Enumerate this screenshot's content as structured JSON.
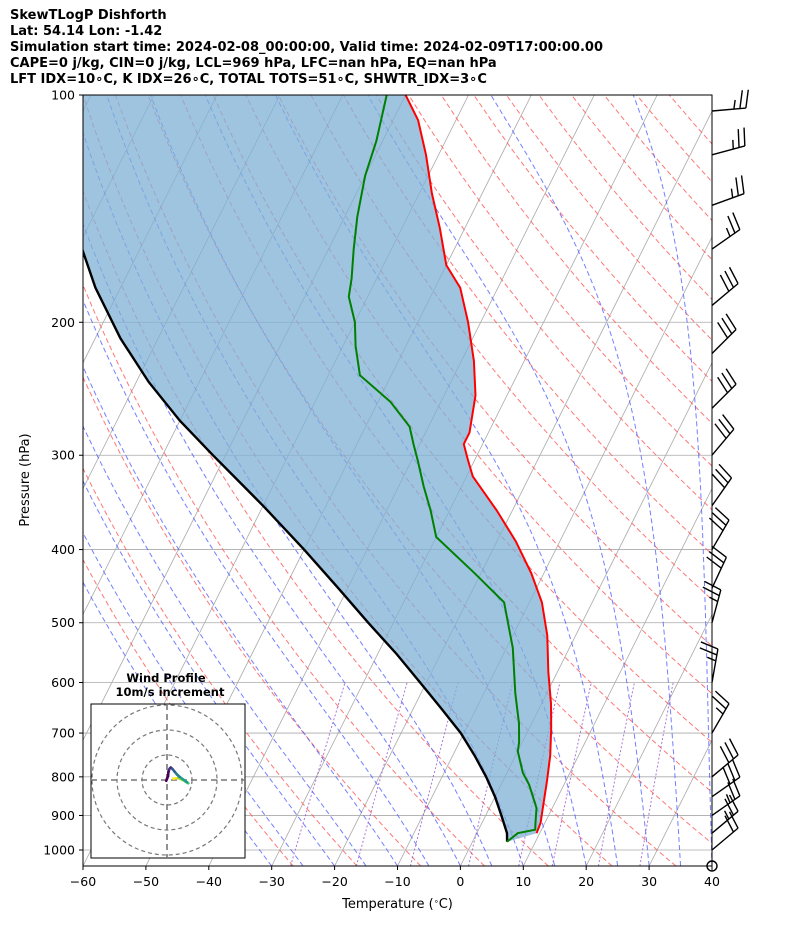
{
  "header": {
    "line1": "SkewTLogP Dishforth",
    "line2": "Lat: 54.14   Lon: -1.42",
    "line3": "Simulation start time: 2024-02-08_00:00:00, Valid time: 2024-02-09T17:00:00.00",
    "line4": "CAPE=0 j/kg, CIN=0 j/kg, LCL=969 hPa, LFC=nan hPa, EQ=nan hPa",
    "line5": "LFT IDX=10∘C, K IDX=26∘C, TOTAL TOTS=51∘C, SHWTR_IDX=3∘C"
  },
  "hodograph": {
    "title_line1": "Wind Profile",
    "title_line2": "10m/s increment"
  },
  "chart_data": [
    {
      "type": "line",
      "title": "SkewTLogP Dishforth",
      "xlabel": "Temperature ($^\\circ$C)",
      "ylabel": "Pressure (hPa)",
      "xlim": [
        -60,
        40
      ],
      "ylim": [
        1050,
        100
      ],
      "yscale": "log",
      "xticks": [
        -60,
        -50,
        -40,
        -30,
        -20,
        -10,
        0,
        10,
        20,
        30,
        40
      ],
      "yticks": [
        100,
        200,
        300,
        400,
        500,
        600,
        700,
        800,
        900,
        1000
      ],
      "grid": true,
      "colors": {
        "temperature": "#ff0000",
        "dewpoint": "#008000",
        "parcel": "#000000",
        "cape_fill": "#7fb0d5",
        "dry_adiabats": "#ff5555",
        "moist_adiabats": "#4455ff",
        "mixing_ratio": "#9955cc",
        "isotherms": "#aaaaaa"
      },
      "series": [
        {
          "name": "temperature",
          "points": [
            [
              9.5,
              950
            ],
            [
              9.3,
              920
            ],
            [
              8.5,
              880
            ],
            [
              7.0,
              810
            ],
            [
              5.5,
              750
            ],
            [
              3.5,
              690
            ],
            [
              1.5,
              640
            ],
            [
              -1.5,
              580
            ],
            [
              -4.5,
              520
            ],
            [
              -8,
              470
            ],
            [
              -12,
              430
            ],
            [
              -17,
              390
            ],
            [
              -22.5,
              355
            ],
            [
              -29,
              320
            ],
            [
              -31,
              305
            ],
            [
              -33,
              290
            ],
            [
              -33,
              280
            ],
            [
              -35,
              250
            ],
            [
              -38,
              225
            ],
            [
              -42,
              200
            ],
            [
              -46,
              180
            ],
            [
              -50,
              168
            ],
            [
              -54,
              150
            ],
            [
              -58,
              135
            ],
            [
              -62,
              120
            ],
            [
              -66,
              108
            ],
            [
              -70,
              100
            ]
          ]
        },
        {
          "name": "dewpoint",
          "points": [
            [
              5.5,
              975
            ],
            [
              6.5,
              950
            ],
            [
              9,
              940
            ],
            [
              8.5,
              920
            ],
            [
              7.5,
              880
            ],
            [
              4.5,
              820
            ],
            [
              2.5,
              790
            ],
            [
              0,
              740
            ],
            [
              -0.5,
              720
            ],
            [
              -2,
              680
            ],
            [
              -5,
              620
            ],
            [
              -9,
              540
            ],
            [
              -14,
              470
            ],
            [
              -21,
              430
            ],
            [
              -30,
              385
            ],
            [
              -33,
              355
            ],
            [
              -36,
              330
            ],
            [
              -39,
              305
            ],
            [
              -41,
              290
            ],
            [
              -43,
              275
            ],
            [
              -48,
              255
            ],
            [
              -55,
              235
            ],
            [
              -58,
              215
            ],
            [
              -60,
              200
            ],
            [
              -63,
              185
            ],
            [
              -64,
              175
            ],
            [
              -66,
              160
            ],
            [
              -68,
              145
            ],
            [
              -70,
              128
            ],
            [
              -71,
              115
            ],
            [
              -73,
              100
            ]
          ]
        },
        {
          "name": "parcel",
          "points": [
            [
              5.5,
              975
            ],
            [
              4.8,
              950
            ],
            [
              2.5,
              900
            ],
            [
              0,
              850
            ],
            [
              -3,
              800
            ],
            [
              -6.5,
              750
            ],
            [
              -10.5,
              700
            ],
            [
              -15.5,
              650
            ],
            [
              -21,
              600
            ],
            [
              -27,
              550
            ],
            [
              -34,
              500
            ],
            [
              -41.5,
              450
            ],
            [
              -50,
              400
            ],
            [
              -60,
              350
            ],
            [
              -72,
              300
            ],
            [
              -80,
              270
            ],
            [
              -88,
              240
            ],
            [
              -96,
              210
            ],
            [
              -104,
              180
            ],
            [
              -112,
              150
            ],
            [
              -120,
              125
            ],
            [
              -128,
              100
            ]
          ]
        }
      ],
      "wind_barbs": [
        {
          "p": 1050,
          "speed_kt": 0,
          "dir_deg": 0
        },
        {
          "p": 1000,
          "speed_kt": 20,
          "dir_deg": 230
        },
        {
          "p": 950,
          "speed_kt": 25,
          "dir_deg": 230
        },
        {
          "p": 900,
          "speed_kt": 25,
          "dir_deg": 235
        },
        {
          "p": 850,
          "speed_kt": 30,
          "dir_deg": 235
        },
        {
          "p": 800,
          "speed_kt": 30,
          "dir_deg": 230
        },
        {
          "p": 700,
          "speed_kt": 25,
          "dir_deg": 210
        },
        {
          "p": 600,
          "speed_kt": 25,
          "dir_deg": 190
        },
        {
          "p": 500,
          "speed_kt": 25,
          "dir_deg": 195
        },
        {
          "p": 450,
          "speed_kt": 30,
          "dir_deg": 205
        },
        {
          "p": 400,
          "speed_kt": 30,
          "dir_deg": 210
        },
        {
          "p": 350,
          "speed_kt": 30,
          "dir_deg": 215
        },
        {
          "p": 300,
          "speed_kt": 30,
          "dir_deg": 220
        },
        {
          "p": 260,
          "speed_kt": 30,
          "dir_deg": 225
        },
        {
          "p": 220,
          "speed_kt": 30,
          "dir_deg": 225
        },
        {
          "p": 190,
          "speed_kt": 30,
          "dir_deg": 230
        },
        {
          "p": 160,
          "speed_kt": 25,
          "dir_deg": 235
        },
        {
          "p": 140,
          "speed_kt": 25,
          "dir_deg": 250
        },
        {
          "p": 120,
          "speed_kt": 25,
          "dir_deg": 255
        },
        {
          "p": 105,
          "speed_kt": 25,
          "dir_deg": 265
        }
      ],
      "hodograph_trace": [
        [
          2.5,
          0.5
        ],
        [
          4.5,
          0.8
        ],
        [
          6,
          0.2
        ],
        [
          7.5,
          -0.7
        ],
        [
          8.5,
          -1.3
        ],
        [
          8,
          -0.9
        ],
        [
          6.5,
          0.2
        ],
        [
          5,
          1.3
        ],
        [
          4,
          2.2
        ],
        [
          3,
          3.4
        ],
        [
          2.2,
          4.4
        ],
        [
          1.5,
          5
        ],
        [
          1,
          4.5
        ],
        [
          0.6,
          3.4
        ],
        [
          0.4,
          1.5
        ],
        [
          0,
          0.5
        ],
        [
          -0.3,
          -0.3
        ]
      ]
    }
  ]
}
